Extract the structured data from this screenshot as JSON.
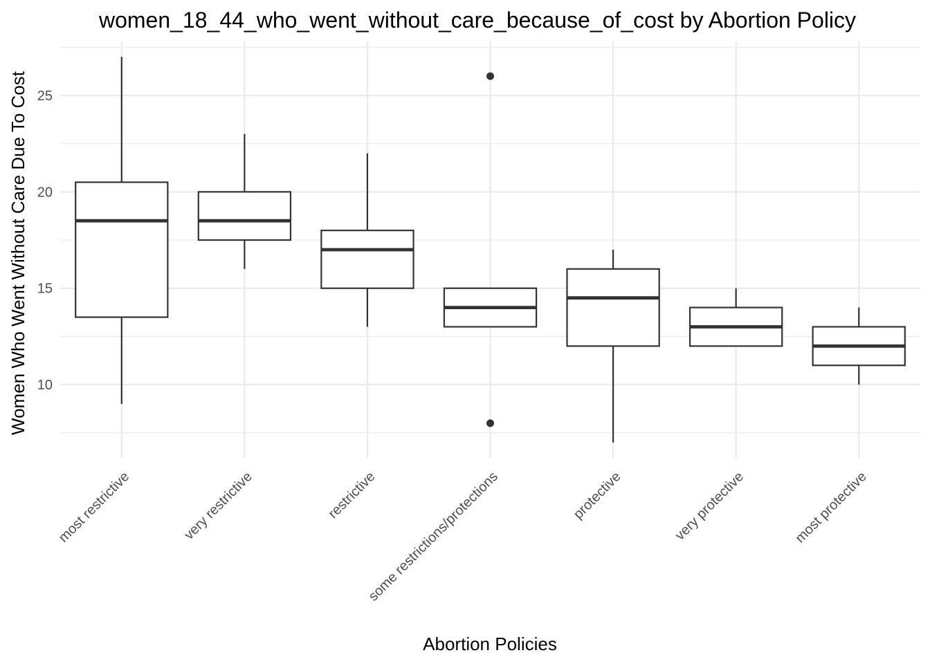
{
  "chart_data": {
    "type": "box",
    "title": "women_18_44_who_went_without_care_because_of_cost by Abortion Policy",
    "xlabel": "Abortion Policies",
    "ylabel": "Women Who Went Without Care Due To Cost",
    "ylim": [
      6.2,
      27.8
    ],
    "yticks": [
      10,
      15,
      20,
      25
    ],
    "grid": true,
    "categories": [
      "most restrictive",
      "very restrictive",
      "restrictive",
      "some restrictions/protections",
      "protective",
      "very protective",
      "most protective"
    ],
    "boxes": [
      {
        "category": "most restrictive",
        "whisker_low": 9,
        "q1": 13.5,
        "median": 18.5,
        "q3": 20.5,
        "whisker_high": 27,
        "outliers": []
      },
      {
        "category": "very restrictive",
        "whisker_low": 16,
        "q1": 17.5,
        "median": 18.5,
        "q3": 20,
        "whisker_high": 23,
        "outliers": []
      },
      {
        "category": "restrictive",
        "whisker_low": 13,
        "q1": 15,
        "median": 17,
        "q3": 18,
        "whisker_high": 22,
        "outliers": []
      },
      {
        "category": "some restrictions/protections",
        "whisker_low": 13,
        "q1": 13,
        "median": 14,
        "q3": 15,
        "whisker_high": 15,
        "outliers": [
          26,
          8
        ]
      },
      {
        "category": "protective",
        "whisker_low": 7,
        "q1": 12,
        "median": 14.5,
        "q3": 16,
        "whisker_high": 17,
        "outliers": []
      },
      {
        "category": "very protective",
        "whisker_low": 12,
        "q1": 12,
        "median": 13,
        "q3": 14,
        "whisker_high": 15,
        "outliers": []
      },
      {
        "category": "most protective",
        "whisker_low": 10,
        "q1": 11,
        "median": 12,
        "q3": 13,
        "whisker_high": 14,
        "outliers": []
      }
    ]
  }
}
